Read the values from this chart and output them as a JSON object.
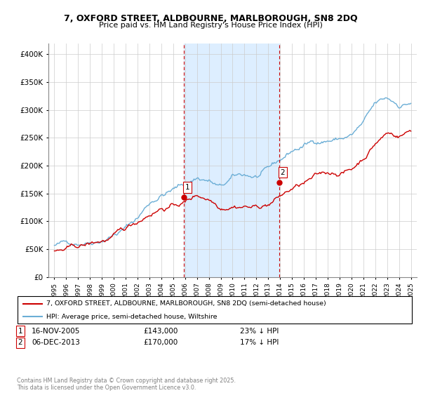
{
  "title1": "7, OXFORD STREET, ALDBOURNE, MARLBOROUGH, SN8 2DQ",
  "title2": "Price paid vs. HM Land Registry's House Price Index (HPI)",
  "ylabel_ticks": [
    "£0",
    "£50K",
    "£100K",
    "£150K",
    "£200K",
    "£250K",
    "£300K",
    "£350K",
    "£400K"
  ],
  "ylabel_values": [
    0,
    50000,
    100000,
    150000,
    200000,
    250000,
    300000,
    350000,
    400000
  ],
  "ylim": [
    0,
    420000
  ],
  "hpi_color": "#6baed6",
  "price_color": "#cc0000",
  "marker1_date": 2005.88,
  "marker1_price": 143000,
  "marker2_date": 2013.92,
  "marker2_price": 170000,
  "legend_line1": "7, OXFORD STREET, ALDBOURNE, MARLBOROUGH, SN8 2DQ (semi-detached house)",
  "legend_line2": "HPI: Average price, semi-detached house, Wiltshire",
  "footer": "Contains HM Land Registry data © Crown copyright and database right 2025.\nThis data is licensed under the Open Government Licence v3.0.",
  "xlim": [
    1994.5,
    2025.5
  ],
  "xticks": [
    1995,
    1996,
    1997,
    1998,
    1999,
    2000,
    2001,
    2002,
    2003,
    2004,
    2005,
    2006,
    2007,
    2008,
    2009,
    2010,
    2011,
    2012,
    2013,
    2014,
    2015,
    2016,
    2017,
    2018,
    2019,
    2020,
    2021,
    2022,
    2023,
    2024,
    2025
  ],
  "shade_x1_start": 2005.88,
  "shade_x1_end": 2013.92,
  "shade_color": "#ddeeff"
}
